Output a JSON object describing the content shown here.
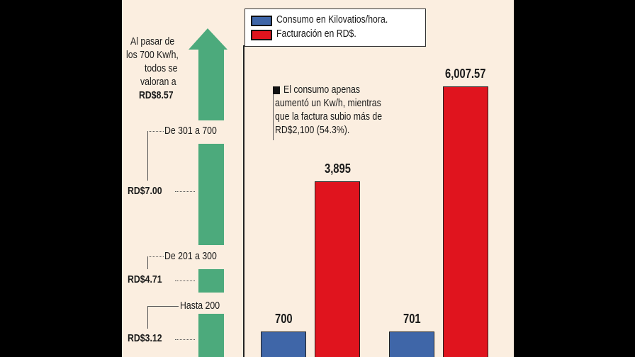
{
  "chart_data": {
    "type": "bar",
    "categories": [
      "",
      ""
    ],
    "series": [
      {
        "name": "Consumo en Kilovatios/hora.",
        "color": "#3f66a8",
        "values": [
          700,
          701
        ],
        "labels": [
          "700",
          "701"
        ]
      },
      {
        "name": "Facturación en RD$.",
        "color": "#e0141e",
        "values": [
          3895,
          6007.57
        ],
        "labels": [
          "3,895",
          "6,007.57"
        ]
      }
    ],
    "annotation": "El consumo apenas aumentó un Kw/h, mientras que la factura subio más de RD$2,100 (54.3%).",
    "annotation_lines": [
      "El consumo apenas",
      "aumentó un Kw/h, mientras",
      "que la factura subio más de",
      "RD$2,100 (54.3%)."
    ],
    "legend_position": "top",
    "grid": false
  },
  "tariffs": {
    "top_note": [
      "Al pasar de",
      "los 700 Kw/h,",
      "todos se",
      "valoran a",
      "RD$8.57"
    ],
    "tiers": [
      {
        "range": "De 301 a 700",
        "price": "RD$7.00"
      },
      {
        "range": "De 201 a 300",
        "price": "RD$4.71"
      },
      {
        "range": "Hasta 200",
        "price": "RD$3.12"
      }
    ],
    "color": "#4caa7c"
  }
}
